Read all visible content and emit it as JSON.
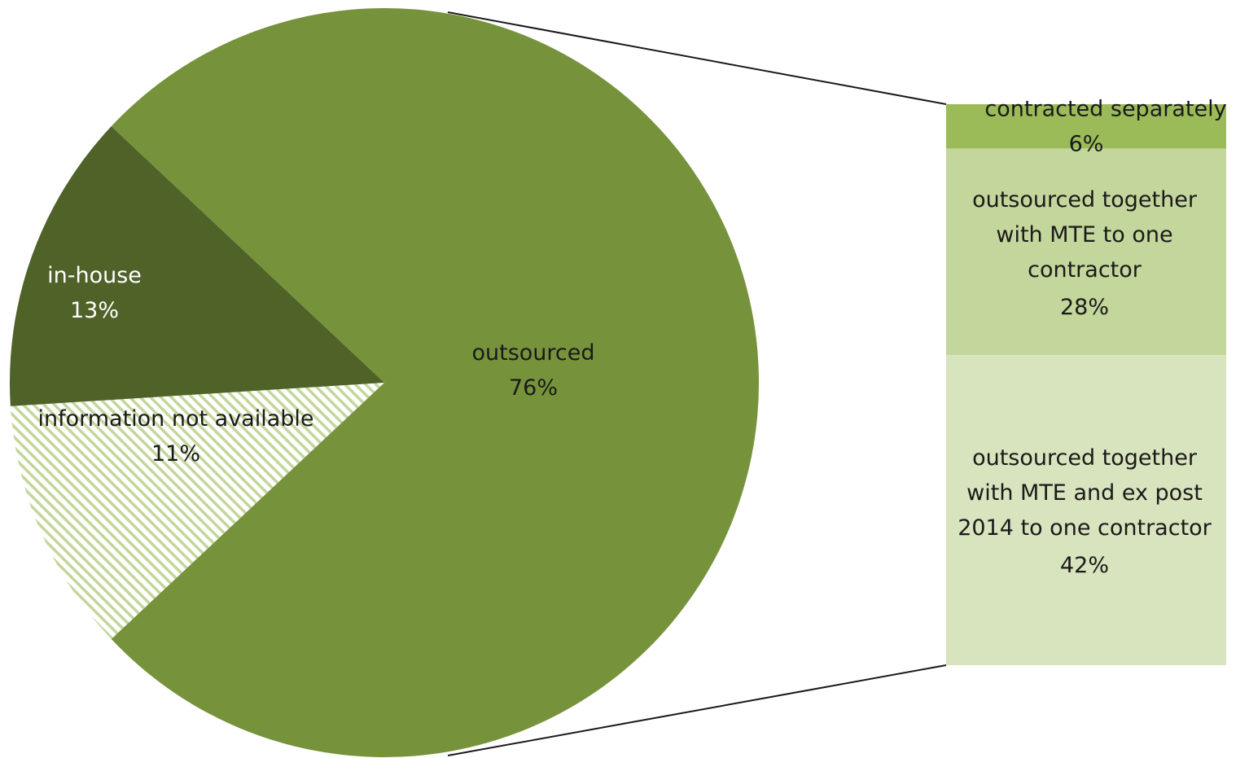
{
  "chart_data": {
    "type": "bar-of-pie",
    "pie": {
      "slices": [
        {
          "name": "outsourced",
          "value": 76,
          "label_value": "76%",
          "color": "#76933c",
          "text_color": "#1a1a1a"
        },
        {
          "name": "information not available",
          "value": 11,
          "label_value": "11%",
          "color": "pattern:diagonal-stripes",
          "text_color": "#1a1a1a"
        },
        {
          "name": "in-house",
          "value": 13,
          "label_value": "13%",
          "color": "#4f6228",
          "text_color": "#ffffff"
        }
      ]
    },
    "bar": {
      "segments": [
        {
          "name": "contracted separately",
          "value": 6,
          "label_value": "6%",
          "color": "#9bbb59"
        },
        {
          "name": "outsourced together with MTE to one contractor",
          "lines": [
            "outsourced together",
            "with MTE to one",
            "contractor"
          ],
          "value": 28,
          "label_value": "28%",
          "color": "#c3d69b"
        },
        {
          "name": "outsourced together with MTE and ex post 2014 to one contractor",
          "lines": [
            "outsourced together",
            "with MTE and ex post",
            "2014 to one contractor"
          ],
          "value": 42,
          "label_value": "42%",
          "color": "#d7e4bd"
        }
      ]
    },
    "legend": "none"
  }
}
